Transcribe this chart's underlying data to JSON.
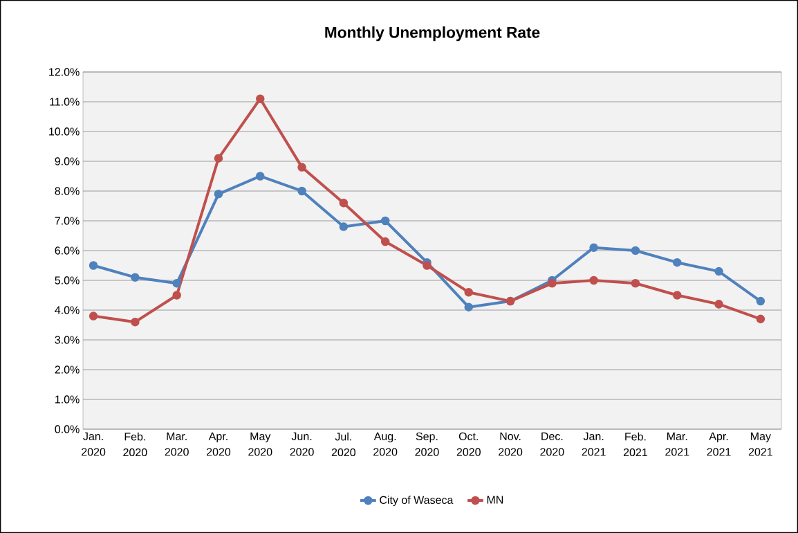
{
  "chart_data": {
    "type": "line",
    "title": "Monthly Unemployment Rate",
    "categories": [
      "Jan. 2020",
      "Feb. 2020",
      "Mar. 2020",
      "Apr. 2020",
      "May 2020",
      "Jun. 2020",
      "Jul. 2020",
      "Aug. 2020",
      "Sep. 2020",
      "Oct. 2020",
      "Nov. 2020",
      "Dec. 2020",
      "Jan. 2021",
      "Feb. 2021",
      "Mar. 2021",
      "Apr. 2021",
      "May 2021"
    ],
    "series": [
      {
        "name": "City of Waseca",
        "color": "#4f81bd",
        "values": [
          5.5,
          5.1,
          4.9,
          7.9,
          8.5,
          8.0,
          6.8,
          7.0,
          5.6,
          4.1,
          4.3,
          5.0,
          6.1,
          6.0,
          5.6,
          5.3,
          4.3
        ]
      },
      {
        "name": "MN",
        "color": "#c0504d",
        "values": [
          3.8,
          3.6,
          4.5,
          9.1,
          11.1,
          8.8,
          7.6,
          6.3,
          5.5,
          4.6,
          4.3,
          4.9,
          5.0,
          4.9,
          4.5,
          4.2,
          3.7
        ]
      }
    ],
    "ylim": [
      0,
      12
    ],
    "yticks": [
      {
        "value": 0,
        "label": "0.0%"
      },
      {
        "value": 1,
        "label": "1.0%"
      },
      {
        "value": 2,
        "label": "2.0%"
      },
      {
        "value": 3,
        "label": "3.0%"
      },
      {
        "value": 4,
        "label": "4.0%"
      },
      {
        "value": 5,
        "label": "5.0%"
      },
      {
        "value": 6,
        "label": "6.0%"
      },
      {
        "value": 7,
        "label": "7.0%"
      },
      {
        "value": 8,
        "label": "8.0%"
      },
      {
        "value": 9,
        "label": "9.0%"
      },
      {
        "value": 10,
        "label": "10.0%"
      },
      {
        "value": 11,
        "label": "11.0%"
      },
      {
        "value": 12,
        "label": "12.0%"
      }
    ],
    "grid": "y",
    "legend": "bottom",
    "marker": "circle",
    "line_style": "solid"
  }
}
